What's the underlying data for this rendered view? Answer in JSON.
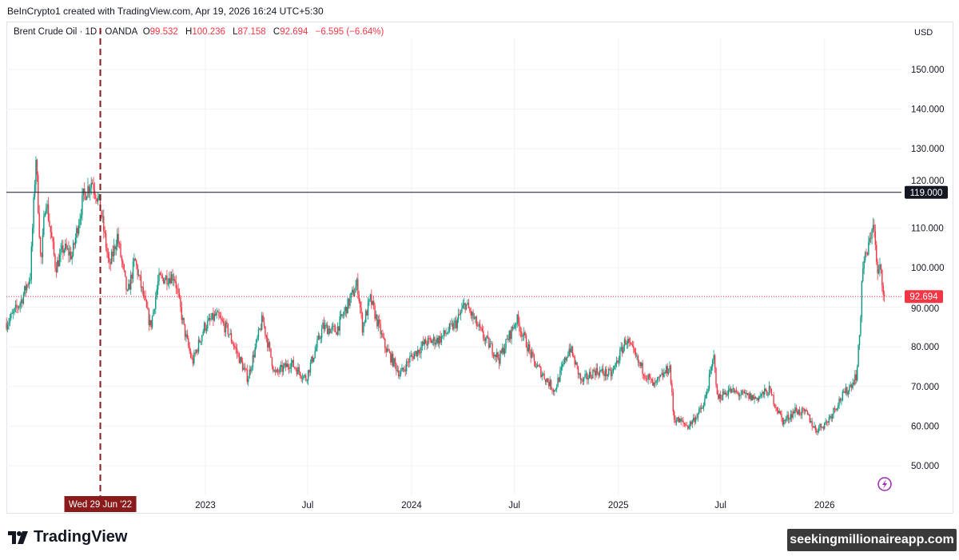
{
  "caption": "BeInCrypto1 created with TradingView.com, Apr 19, 2026 16:24 UTC+5:30",
  "legend": {
    "symbol": "Brent Crude Oil · 1D · OANDA",
    "o_label": "O",
    "open": "99.532",
    "h_label": "H",
    "high": "100.236",
    "l_label": "L",
    "low": "87.158",
    "c_label": "C",
    "close": "92.694",
    "change": "−6.595 (−6.64%)"
  },
  "currency": "USD",
  "crosshair_date": "Wed 29 Jun '22",
  "brand": "TradingView",
  "watermark": "seekingmillionaireapp.com",
  "colors": {
    "up": "#089981",
    "down": "#f23645",
    "level_line": "#131722",
    "crosshair": "#8b1a1a"
  },
  "chart_data": {
    "type": "candlestick",
    "interval": "1D",
    "ylim": [
      43,
      155
    ],
    "y_ticks": [
      "50.000",
      "60.000",
      "70.000",
      "80.000",
      "90.000",
      "100.000",
      "110.000",
      "120.000",
      "130.000",
      "140.000",
      "150.000"
    ],
    "x_ticks": [
      {
        "label": "2023",
        "date": "2023-01-01"
      },
      {
        "label": "Jul",
        "date": "2023-07-01"
      },
      {
        "label": "2024",
        "date": "2024-01-01"
      },
      {
        "label": "Jul",
        "date": "2024-07-01"
      },
      {
        "label": "2025",
        "date": "2025-01-01"
      },
      {
        "label": "Jul",
        "date": "2025-07-01"
      },
      {
        "label": "2026",
        "date": "2026-01-01"
      }
    ],
    "grid": true,
    "horizontal_level": {
      "value": 119.0,
      "label": "119.000"
    },
    "last_price": {
      "value": 92.694,
      "label": "92.694"
    },
    "crosshair_date": "2022-06-29",
    "approx_closes": [
      [
        "2022-01-14",
        86
      ],
      [
        "2022-01-25",
        88
      ],
      [
        "2022-02-10",
        92
      ],
      [
        "2022-02-25",
        98
      ],
      [
        "2022-03-07",
        128
      ],
      [
        "2022-03-16",
        100
      ],
      [
        "2022-03-24",
        118
      ],
      [
        "2022-04-11",
        100
      ],
      [
        "2022-04-25",
        105
      ],
      [
        "2022-05-10",
        103
      ],
      [
        "2022-05-30",
        118
      ],
      [
        "2022-06-14",
        122
      ],
      [
        "2022-06-28",
        116
      ],
      [
        "2022-07-15",
        100
      ],
      [
        "2022-07-29",
        108
      ],
      [
        "2022-08-16",
        93
      ],
      [
        "2022-08-29",
        102
      ],
      [
        "2022-09-26",
        85
      ],
      [
        "2022-10-10",
        97
      ],
      [
        "2022-11-07",
        98
      ],
      [
        "2022-11-25",
        84
      ],
      [
        "2022-12-09",
        76
      ],
      [
        "2022-12-30",
        85
      ],
      [
        "2023-01-20",
        88
      ],
      [
        "2023-02-10",
        84
      ],
      [
        "2023-03-17",
        72
      ],
      [
        "2023-04-12",
        87
      ],
      [
        "2023-05-04",
        73
      ],
      [
        "2023-06-01",
        76
      ],
      [
        "2023-06-28",
        72
      ],
      [
        "2023-07-28",
        85
      ],
      [
        "2023-08-20",
        84
      ],
      [
        "2023-09-27",
        96
      ],
      [
        "2023-10-06",
        85
      ],
      [
        "2023-10-20",
        92
      ],
      [
        "2023-11-15",
        80
      ],
      [
        "2023-12-12",
        73
      ],
      [
        "2023-12-29",
        77
      ],
      [
        "2024-01-25",
        81
      ],
      [
        "2024-02-20",
        82
      ],
      [
        "2024-03-20",
        86
      ],
      [
        "2024-04-05",
        91
      ],
      [
        "2024-05-05",
        83
      ],
      [
        "2024-06-04",
        77
      ],
      [
        "2024-07-05",
        87
      ],
      [
        "2024-08-05",
        76
      ],
      [
        "2024-09-10",
        69
      ],
      [
        "2024-10-07",
        80
      ],
      [
        "2024-10-28",
        71
      ],
      [
        "2024-11-20",
        74
      ],
      [
        "2024-12-20",
        73
      ],
      [
        "2025-01-15",
        82
      ],
      [
        "2025-02-05",
        76
      ],
      [
        "2025-03-05",
        70
      ],
      [
        "2025-04-02",
        75
      ],
      [
        "2025-04-09",
        62
      ],
      [
        "2025-05-05",
        60
      ],
      [
        "2025-06-01",
        65
      ],
      [
        "2025-06-20",
        78
      ],
      [
        "2025-06-25",
        67
      ],
      [
        "2025-07-15",
        69
      ],
      [
        "2025-08-05",
        68
      ],
      [
        "2025-09-01",
        67
      ],
      [
        "2025-09-25",
        69
      ],
      [
        "2025-10-20",
        61
      ],
      [
        "2025-11-10",
        64
      ],
      [
        "2025-12-01",
        63
      ],
      [
        "2025-12-16",
        59
      ],
      [
        "2026-01-05",
        61
      ],
      [
        "2026-01-25",
        66
      ],
      [
        "2026-02-15",
        70
      ],
      [
        "2026-02-27",
        73
      ],
      [
        "2026-03-05",
        85
      ],
      [
        "2026-03-09",
        100
      ],
      [
        "2026-03-20",
        105
      ],
      [
        "2026-03-28",
        112
      ],
      [
        "2026-04-05",
        98
      ],
      [
        "2026-04-10",
        100
      ],
      [
        "2026-04-17",
        92.694
      ]
    ]
  }
}
